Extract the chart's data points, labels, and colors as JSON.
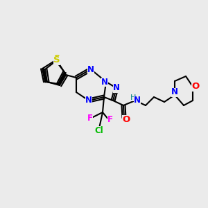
{
  "background_color": "#ebebeb",
  "bond_color": "#000000",
  "bond_width": 1.5,
  "atom_colors": {
    "N": "#0000FF",
    "O": "#FF0000",
    "S": "#CCCC00",
    "F": "#FF00FF",
    "Cl": "#00BB00",
    "H": "#008080",
    "C": "#000000"
  },
  "font_size": 8.5
}
